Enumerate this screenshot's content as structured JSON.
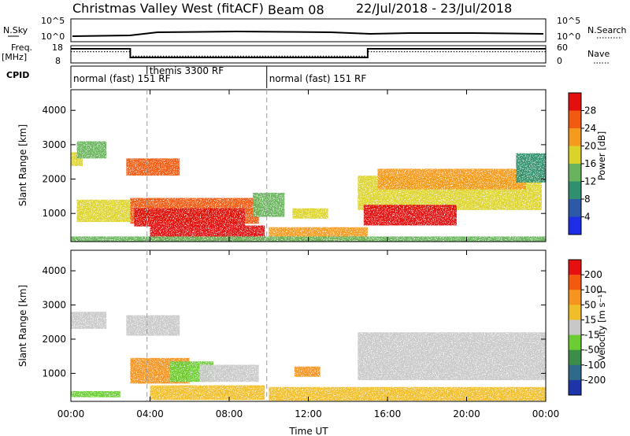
{
  "header": {
    "station": "Christmas Valley West (fitACF)",
    "beam": "Beam 08",
    "date_range": "22/Jul/2018 - 23/Jul/2018"
  },
  "summary_panel": {
    "left_label": "N.Sky",
    "left_ticks": [
      "10^5",
      "10^0"
    ],
    "right_label": "N.Search",
    "right_ticks": [
      "10^5",
      "10^0"
    ],
    "freq_label_1": "Freq.",
    "freq_label_2": "[MHz]",
    "freq_ticks": [
      "18",
      "8"
    ],
    "nave_label": "Nave",
    "nave_ticks": [
      "60",
      "0"
    ],
    "cpid_label": "CPID",
    "cpid_segments": [
      {
        "start_hour": 0.0,
        "label": "normal (fast) 151 RF"
      },
      {
        "start_hour": 3.85,
        "label": "themis 3300 RF"
      },
      {
        "start_hour": 9.9,
        "label": "normal (fast) 151 RF"
      }
    ],
    "freq_series": {
      "x": [
        0,
        3,
        3,
        15,
        15,
        24
      ],
      "y": [
        16.5,
        16.5,
        11,
        11,
        16.5,
        16.5
      ],
      "ylim": [
        8,
        18
      ]
    },
    "nave_series": {
      "x": [
        0,
        3,
        3,
        15,
        15,
        24
      ],
      "y": [
        40,
        40,
        23,
        23,
        40,
        40
      ],
      "ylim": [
        0,
        60
      ]
    }
  },
  "chart_data": [
    {
      "type": "heatmap",
      "name": "power-panel",
      "xlabel": "",
      "ylabel": "Slant Range [km]",
      "xlim": [
        0,
        24
      ],
      "ylim": [
        180,
        4600
      ],
      "y_ticks": [
        1000,
        2000,
        3000,
        4000
      ],
      "dashed_x": [
        3.85,
        9.9
      ],
      "colorbar": {
        "label": "Power [dB]",
        "ticks": [
          "4",
          "8",
          "12",
          "16",
          "20",
          "24",
          "28"
        ],
        "colors": [
          "#1e2de6",
          "#2c5aa8",
          "#2f8f6e",
          "#68b45c",
          "#dcd32a",
          "#f59a1d",
          "#f25a0f",
          "#e30f0f"
        ]
      },
      "regions": [
        {
          "x0": 0.0,
          "x1": 0.6,
          "y0": 2380,
          "y1": 2780,
          "level": 4
        },
        {
          "x0": 0.3,
          "x1": 1.8,
          "y0": 2600,
          "y1": 3100,
          "level": 3
        },
        {
          "x0": 0.3,
          "x1": 3.0,
          "y0": 750,
          "y1": 1400,
          "level": 4
        },
        {
          "x0": 2.8,
          "x1": 5.5,
          "y0": 2100,
          "y1": 2600,
          "level": 6
        },
        {
          "x0": 3.0,
          "x1": 9.5,
          "y0": 700,
          "y1": 1450,
          "level": 6
        },
        {
          "x0": 3.2,
          "x1": 8.8,
          "y0": 620,
          "y1": 1150,
          "level": 7
        },
        {
          "x0": 4.0,
          "x1": 9.8,
          "y0": 200,
          "y1": 650,
          "level": 7
        },
        {
          "x0": 9.2,
          "x1": 10.8,
          "y0": 900,
          "y1": 1600,
          "level": 3
        },
        {
          "x0": 11.2,
          "x1": 13.0,
          "y0": 850,
          "y1": 1150,
          "level": 4
        },
        {
          "x0": 10.0,
          "x1": 15.0,
          "y0": 200,
          "y1": 600,
          "level": 5
        },
        {
          "x0": 14.5,
          "x1": 23.8,
          "y0": 1100,
          "y1": 2100,
          "level": 4
        },
        {
          "x0": 14.8,
          "x1": 19.5,
          "y0": 650,
          "y1": 1250,
          "level": 7
        },
        {
          "x0": 15.5,
          "x1": 23.0,
          "y0": 1700,
          "y1": 2300,
          "level": 5
        },
        {
          "x0": 22.5,
          "x1": 24.0,
          "y0": 1900,
          "y1": 2750,
          "level": 2
        },
        {
          "x0": 0.0,
          "x1": 24.0,
          "y0": 180,
          "y1": 330,
          "level": 3
        }
      ]
    },
    {
      "type": "heatmap",
      "name": "velocity-panel",
      "xlabel": "Time UT",
      "ylabel": "Slant Range [km]",
      "xlim": [
        0,
        24
      ],
      "ylim": [
        180,
        4600
      ],
      "y_ticks": [
        1000,
        2000,
        3000,
        4000
      ],
      "x_ticks": [
        "00:00",
        "04:00",
        "08:00",
        "12:00",
        "16:00",
        "20:00",
        "00:00"
      ],
      "dashed_x": [
        3.85,
        9.9
      ],
      "colorbar": {
        "label": "Velocity [m s⁻¹]",
        "ticks": [
          "200",
          "100",
          "50",
          "15",
          "-15",
          "-50",
          "-100",
          "-200"
        ],
        "colors": [
          "#1d35a8",
          "#2f6a8a",
          "#3b8d47",
          "#6ccd32",
          "#c8c8c8",
          "#f0be28",
          "#f5941e",
          "#f35a0e",
          "#e61010"
        ]
      },
      "regions": [
        {
          "x0": 0.0,
          "x1": 1.8,
          "y0": 2300,
          "y1": 2800,
          "level": 4
        },
        {
          "x0": 2.8,
          "x1": 5.5,
          "y0": 2100,
          "y1": 2700,
          "level": 4
        },
        {
          "x0": 3.0,
          "x1": 6.0,
          "y0": 700,
          "y1": 1450,
          "level": 6
        },
        {
          "x0": 5.0,
          "x1": 7.2,
          "y0": 750,
          "y1": 1350,
          "level": 3
        },
        {
          "x0": 6.5,
          "x1": 9.5,
          "y0": 750,
          "y1": 1250,
          "level": 4
        },
        {
          "x0": 4.0,
          "x1": 9.8,
          "y0": 220,
          "y1": 650,
          "level": 5
        },
        {
          "x0": 11.3,
          "x1": 12.6,
          "y0": 900,
          "y1": 1200,
          "level": 6
        },
        {
          "x0": 0.0,
          "x1": 2.5,
          "y0": 300,
          "y1": 480,
          "level": 3
        },
        {
          "x0": 14.5,
          "x1": 24.0,
          "y0": 800,
          "y1": 2200,
          "level": 4
        },
        {
          "x0": 10.0,
          "x1": 24.0,
          "y0": 200,
          "y1": 600,
          "level": 5
        }
      ]
    }
  ]
}
